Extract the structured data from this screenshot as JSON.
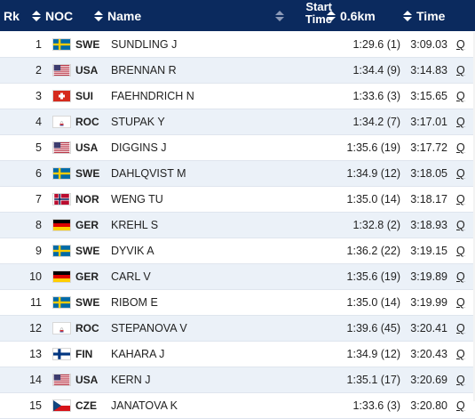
{
  "header": {
    "rk": "Rk",
    "noc": "NOC",
    "name": "Name",
    "start_time_line1": "Start",
    "start_time_line2": "Time",
    "split": "0.6km",
    "time": "Time"
  },
  "rows": [
    {
      "rk": "1",
      "noc": "SWE",
      "flag": "sweden-flag-icon",
      "name": "SUNDLING J",
      "split": "1:29.6 (1)",
      "time": "3:09.03",
      "q": "Q"
    },
    {
      "rk": "2",
      "noc": "USA",
      "flag": "usa-flag-icon",
      "name": "BRENNAN R",
      "split": "1:34.4 (9)",
      "time": "3:14.83",
      "q": "Q"
    },
    {
      "rk": "3",
      "noc": "SUI",
      "flag": "switzerland-flag-icon",
      "name": "FAEHNDRICH N",
      "split": "1:33.6 (3)",
      "time": "3:15.65",
      "q": "Q"
    },
    {
      "rk": "4",
      "noc": "ROC",
      "flag": "roc-flag-icon",
      "name": "STUPAK Y",
      "split": "1:34.2 (7)",
      "time": "3:17.01",
      "q": "Q"
    },
    {
      "rk": "5",
      "noc": "USA",
      "flag": "usa-flag-icon",
      "name": "DIGGINS J",
      "split": "1:35.6 (19)",
      "time": "3:17.72",
      "q": "Q"
    },
    {
      "rk": "6",
      "noc": "SWE",
      "flag": "sweden-flag-icon",
      "name": "DAHLQVIST M",
      "split": "1:34.9 (12)",
      "time": "3:18.05",
      "q": "Q"
    },
    {
      "rk": "7",
      "noc": "NOR",
      "flag": "norway-flag-icon",
      "name": "WENG TU",
      "split": "1:35.0 (14)",
      "time": "3:18.17",
      "q": "Q"
    },
    {
      "rk": "8",
      "noc": "GER",
      "flag": "germany-flag-icon",
      "name": "KREHL S",
      "split": "1:32.8 (2)",
      "time": "3:18.93",
      "q": "Q"
    },
    {
      "rk": "9",
      "noc": "SWE",
      "flag": "sweden-flag-icon",
      "name": "DYVIK A",
      "split": "1:36.2 (22)",
      "time": "3:19.15",
      "q": "Q"
    },
    {
      "rk": "10",
      "noc": "GER",
      "flag": "germany-flag-icon",
      "name": "CARL V",
      "split": "1:35.6 (19)",
      "time": "3:19.89",
      "q": "Q"
    },
    {
      "rk": "11",
      "noc": "SWE",
      "flag": "sweden-flag-icon",
      "name": "RIBOM E",
      "split": "1:35.0 (14)",
      "time": "3:19.99",
      "q": "Q"
    },
    {
      "rk": "12",
      "noc": "ROC",
      "flag": "roc-flag-icon",
      "name": "STEPANOVA V",
      "split": "1:39.6 (45)",
      "time": "3:20.41",
      "q": "Q"
    },
    {
      "rk": "13",
      "noc": "FIN",
      "flag": "finland-flag-icon",
      "name": "KAHARA J",
      "split": "1:34.9 (12)",
      "time": "3:20.43",
      "q": "Q"
    },
    {
      "rk": "14",
      "noc": "USA",
      "flag": "usa-flag-icon",
      "name": "KERN J",
      "split": "1:35.1 (17)",
      "time": "3:20.69",
      "q": "Q"
    },
    {
      "rk": "15",
      "noc": "CZE",
      "flag": "czechia-flag-icon",
      "name": "JANATOVA K",
      "split": "1:33.6 (3)",
      "time": "3:20.80",
      "q": "Q"
    }
  ],
  "colors": {
    "header_bg": "#0b2a5e",
    "alt_row": "#ebf1f8"
  }
}
